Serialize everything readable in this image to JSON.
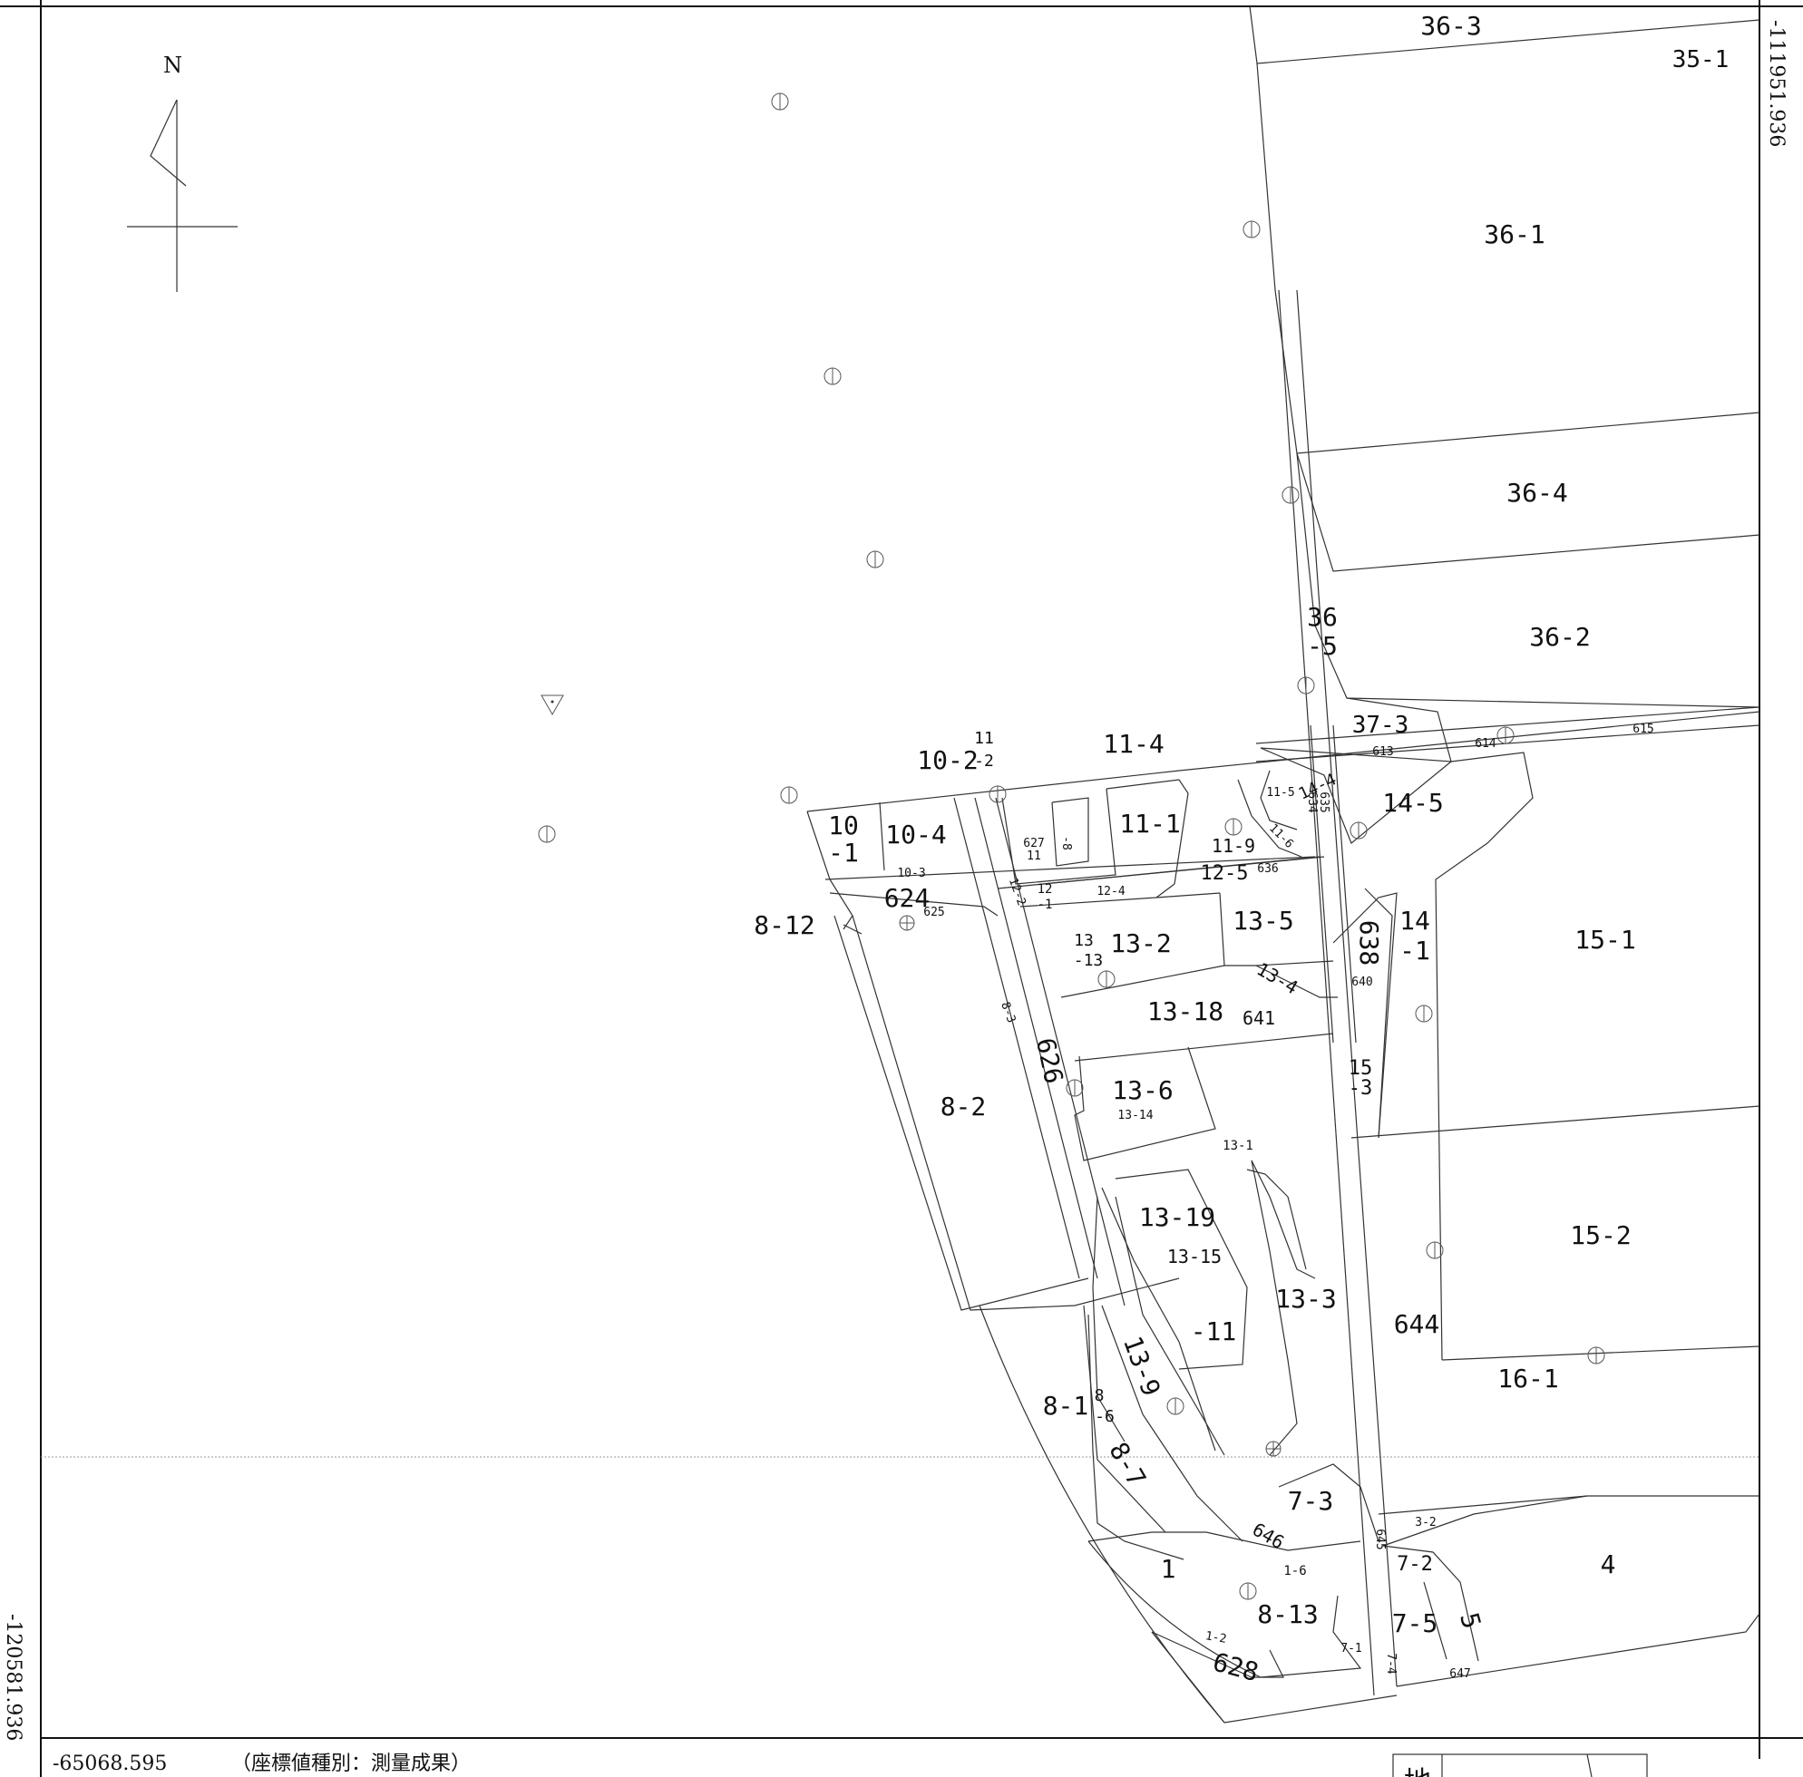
{
  "north_label": "N",
  "coord_top_right": "-111951.936",
  "coord_left": "-120581.936",
  "coord_bottom_left": "-65068.595",
  "coord_type": "（座標値種別：測量成果）",
  "legend_char": "地",
  "parcels": [
    "36-3",
    "35-1",
    "36-1",
    "36-4",
    "36",
    "-5",
    "36-2",
    "37-3",
    "613",
    "614",
    "615",
    "11-4",
    "10-2",
    "11",
    "-2",
    "10",
    "-1",
    "10-4",
    "10-3",
    "11-5",
    "14-4",
    "14-5",
    "634",
    "635",
    "11-1",
    "11-9",
    "11-6",
    "636",
    "12-5",
    "12",
    "-1",
    "12-4",
    "12-2",
    "624",
    "625",
    "8-12",
    "13-5",
    "638",
    "14",
    "-1",
    "15-1",
    "13",
    "-13",
    "13-2",
    "640",
    "13-4",
    "13-18",
    "641",
    "8-3",
    "626",
    "13-6",
    "13-14",
    "15",
    "-3",
    "8-2",
    "13-1",
    "13-19",
    "13-15",
    "15-2",
    "13-3",
    "-11",
    "644",
    "13-9",
    "8",
    "-6",
    "8-1",
    "16-1",
    "8-7",
    "7-3",
    "3-2",
    "645",
    "646",
    "1-6",
    "7-2",
    "4",
    "1",
    "8-13",
    "7-5",
    "5",
    "1-2",
    "7-1",
    "7-4",
    "647",
    "628",
    "627",
    "11",
    "-8",
    "-7"
  ]
}
